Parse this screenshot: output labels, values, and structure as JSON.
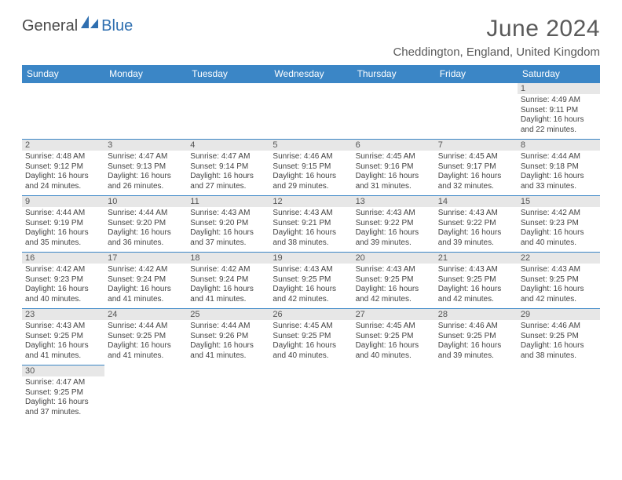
{
  "logo": {
    "part1": "General",
    "part2": "Blue"
  },
  "title": "June 2024",
  "location": "Cheddington, England, United Kingdom",
  "colors": {
    "header_bg": "#3b86c6",
    "header_text": "#ffffff",
    "daynum_bg": "#e7e7e7",
    "cell_border": "#3b86c6",
    "logo_gray": "#4a4a4a",
    "logo_blue": "#2f6fb0"
  },
  "weekdays": [
    "Sunday",
    "Monday",
    "Tuesday",
    "Wednesday",
    "Thursday",
    "Friday",
    "Saturday"
  ],
  "weeks": [
    [
      {
        "empty": true
      },
      {
        "empty": true
      },
      {
        "empty": true
      },
      {
        "empty": true
      },
      {
        "empty": true
      },
      {
        "empty": true
      },
      {
        "day": 1,
        "sunrise": "Sunrise: 4:49 AM",
        "sunset": "Sunset: 9:11 PM",
        "daylight": "Daylight: 16 hours and 22 minutes."
      }
    ],
    [
      {
        "day": 2,
        "sunrise": "Sunrise: 4:48 AM",
        "sunset": "Sunset: 9:12 PM",
        "daylight": "Daylight: 16 hours and 24 minutes."
      },
      {
        "day": 3,
        "sunrise": "Sunrise: 4:47 AM",
        "sunset": "Sunset: 9:13 PM",
        "daylight": "Daylight: 16 hours and 26 minutes."
      },
      {
        "day": 4,
        "sunrise": "Sunrise: 4:47 AM",
        "sunset": "Sunset: 9:14 PM",
        "daylight": "Daylight: 16 hours and 27 minutes."
      },
      {
        "day": 5,
        "sunrise": "Sunrise: 4:46 AM",
        "sunset": "Sunset: 9:15 PM",
        "daylight": "Daylight: 16 hours and 29 minutes."
      },
      {
        "day": 6,
        "sunrise": "Sunrise: 4:45 AM",
        "sunset": "Sunset: 9:16 PM",
        "daylight": "Daylight: 16 hours and 31 minutes."
      },
      {
        "day": 7,
        "sunrise": "Sunrise: 4:45 AM",
        "sunset": "Sunset: 9:17 PM",
        "daylight": "Daylight: 16 hours and 32 minutes."
      },
      {
        "day": 8,
        "sunrise": "Sunrise: 4:44 AM",
        "sunset": "Sunset: 9:18 PM",
        "daylight": "Daylight: 16 hours and 33 minutes."
      }
    ],
    [
      {
        "day": 9,
        "sunrise": "Sunrise: 4:44 AM",
        "sunset": "Sunset: 9:19 PM",
        "daylight": "Daylight: 16 hours and 35 minutes."
      },
      {
        "day": 10,
        "sunrise": "Sunrise: 4:44 AM",
        "sunset": "Sunset: 9:20 PM",
        "daylight": "Daylight: 16 hours and 36 minutes."
      },
      {
        "day": 11,
        "sunrise": "Sunrise: 4:43 AM",
        "sunset": "Sunset: 9:20 PM",
        "daylight": "Daylight: 16 hours and 37 minutes."
      },
      {
        "day": 12,
        "sunrise": "Sunrise: 4:43 AM",
        "sunset": "Sunset: 9:21 PM",
        "daylight": "Daylight: 16 hours and 38 minutes."
      },
      {
        "day": 13,
        "sunrise": "Sunrise: 4:43 AM",
        "sunset": "Sunset: 9:22 PM",
        "daylight": "Daylight: 16 hours and 39 minutes."
      },
      {
        "day": 14,
        "sunrise": "Sunrise: 4:43 AM",
        "sunset": "Sunset: 9:22 PM",
        "daylight": "Daylight: 16 hours and 39 minutes."
      },
      {
        "day": 15,
        "sunrise": "Sunrise: 4:42 AM",
        "sunset": "Sunset: 9:23 PM",
        "daylight": "Daylight: 16 hours and 40 minutes."
      }
    ],
    [
      {
        "day": 16,
        "sunrise": "Sunrise: 4:42 AM",
        "sunset": "Sunset: 9:23 PM",
        "daylight": "Daylight: 16 hours and 40 minutes."
      },
      {
        "day": 17,
        "sunrise": "Sunrise: 4:42 AM",
        "sunset": "Sunset: 9:24 PM",
        "daylight": "Daylight: 16 hours and 41 minutes."
      },
      {
        "day": 18,
        "sunrise": "Sunrise: 4:42 AM",
        "sunset": "Sunset: 9:24 PM",
        "daylight": "Daylight: 16 hours and 41 minutes."
      },
      {
        "day": 19,
        "sunrise": "Sunrise: 4:43 AM",
        "sunset": "Sunset: 9:25 PM",
        "daylight": "Daylight: 16 hours and 42 minutes."
      },
      {
        "day": 20,
        "sunrise": "Sunrise: 4:43 AM",
        "sunset": "Sunset: 9:25 PM",
        "daylight": "Daylight: 16 hours and 42 minutes."
      },
      {
        "day": 21,
        "sunrise": "Sunrise: 4:43 AM",
        "sunset": "Sunset: 9:25 PM",
        "daylight": "Daylight: 16 hours and 42 minutes."
      },
      {
        "day": 22,
        "sunrise": "Sunrise: 4:43 AM",
        "sunset": "Sunset: 9:25 PM",
        "daylight": "Daylight: 16 hours and 42 minutes."
      }
    ],
    [
      {
        "day": 23,
        "sunrise": "Sunrise: 4:43 AM",
        "sunset": "Sunset: 9:25 PM",
        "daylight": "Daylight: 16 hours and 41 minutes."
      },
      {
        "day": 24,
        "sunrise": "Sunrise: 4:44 AM",
        "sunset": "Sunset: 9:25 PM",
        "daylight": "Daylight: 16 hours and 41 minutes."
      },
      {
        "day": 25,
        "sunrise": "Sunrise: 4:44 AM",
        "sunset": "Sunset: 9:26 PM",
        "daylight": "Daylight: 16 hours and 41 minutes."
      },
      {
        "day": 26,
        "sunrise": "Sunrise: 4:45 AM",
        "sunset": "Sunset: 9:25 PM",
        "daylight": "Daylight: 16 hours and 40 minutes."
      },
      {
        "day": 27,
        "sunrise": "Sunrise: 4:45 AM",
        "sunset": "Sunset: 9:25 PM",
        "daylight": "Daylight: 16 hours and 40 minutes."
      },
      {
        "day": 28,
        "sunrise": "Sunrise: 4:46 AM",
        "sunset": "Sunset: 9:25 PM",
        "daylight": "Daylight: 16 hours and 39 minutes."
      },
      {
        "day": 29,
        "sunrise": "Sunrise: 4:46 AM",
        "sunset": "Sunset: 9:25 PM",
        "daylight": "Daylight: 16 hours and 38 minutes."
      }
    ],
    [
      {
        "day": 30,
        "sunrise": "Sunrise: 4:47 AM",
        "sunset": "Sunset: 9:25 PM",
        "daylight": "Daylight: 16 hours and 37 minutes."
      },
      {
        "empty": true
      },
      {
        "empty": true
      },
      {
        "empty": true
      },
      {
        "empty": true
      },
      {
        "empty": true
      },
      {
        "empty": true
      }
    ]
  ]
}
